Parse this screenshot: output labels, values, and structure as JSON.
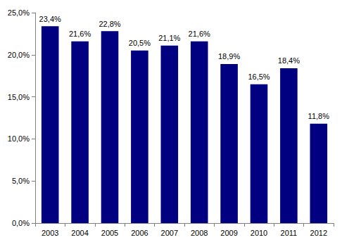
{
  "chart_data": {
    "type": "bar",
    "categories": [
      "2003",
      "2004",
      "2005",
      "2006",
      "2007",
      "2008",
      "2009",
      "2010",
      "2011",
      "2012"
    ],
    "values": [
      23.4,
      21.6,
      22.8,
      20.5,
      21.1,
      21.6,
      18.9,
      16.5,
      18.4,
      11.8
    ],
    "value_labels": [
      "23,4%",
      "21,6%",
      "22,8%",
      "20,5%",
      "21,1%",
      "21,6%",
      "18,9%",
      "16,5%",
      "18,4%",
      "11,8%"
    ],
    "color": "#000080",
    "ylim": [
      0,
      25
    ],
    "yticks": [
      {
        "value": 0,
        "label": "0,0%"
      },
      {
        "value": 5,
        "label": "5,0%"
      },
      {
        "value": 10,
        "label": "10,0%"
      },
      {
        "value": 15,
        "label": "15,0%"
      },
      {
        "value": 20,
        "label": "20,0%"
      },
      {
        "value": 25,
        "label": "25,0%"
      }
    ],
    "grid": false,
    "data_labels": true
  }
}
